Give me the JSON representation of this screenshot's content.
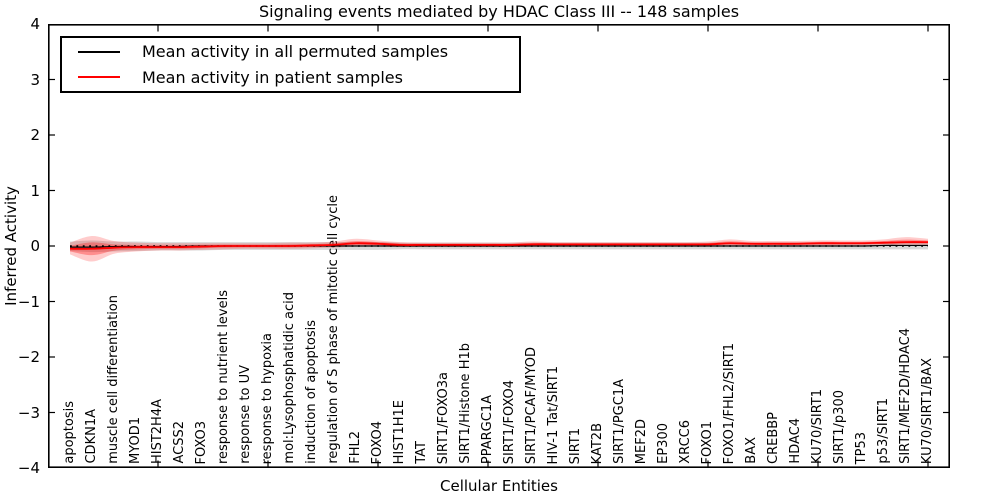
{
  "figure": {
    "title": "Signaling events mediated by HDAC Class III -- 148 samples",
    "xlabel": "Cellular Entities",
    "ylabel": "Inferred Activity"
  },
  "legend": {
    "items": [
      {
        "label": "Mean activity in all permuted samples",
        "color": "#000000"
      },
      {
        "label": "Mean activity in patient samples",
        "color": "#ff0000"
      }
    ]
  },
  "chart_data": {
    "type": "line",
    "title": "Signaling events mediated by HDAC Class III -- 148 samples",
    "xlabel": "Cellular Entities",
    "ylabel": "Inferred Activity",
    "ylim": [
      -4,
      4
    ],
    "yticks": [
      4,
      3,
      2,
      1,
      0,
      -1,
      -2,
      -3,
      -4
    ],
    "xlim_units": [
      0,
      41
    ],
    "x_major_tick_step": 5,
    "grid": false,
    "legend_position": "upper left",
    "zero_line": {
      "y": 0,
      "style": "dotted",
      "color": "#000000"
    },
    "categories": [
      "apoptosis",
      "CDKN1A",
      "muscle cell differentiation",
      "MYOD1",
      "HIST2H4A",
      "ACSS2",
      "FOXO3",
      "response to nutrient levels",
      "response to UV",
      "response to hypoxia",
      "mol:Lysophosphatidic acid",
      "induction of apoptosis",
      "regulation of S phase of mitotic cell cycle",
      "FHL2",
      "FOXO4",
      "HIST1H1E",
      "TAT",
      "SIRT1/FOXO3a",
      "SIRT1/Histone H1b",
      "PPARGC1A",
      "SIRT1/FOXO4",
      "SIRT1/PCAF/MYOD",
      "HIV-1 Tat/SIRT1",
      "SIRT1",
      "KAT2B",
      "SIRT1/PGC1A",
      "MEF2D",
      "EP300",
      "XRCC6",
      "FOXO1",
      "FOXO1/FHL2/SIRT1",
      "BAX",
      "CREBBP",
      "HDAC4",
      "KU70/SIRT1",
      "SIRT1/p300",
      "TP53",
      "p53/SIRT1",
      "SIRT1/MEF2D/HDAC4",
      "KU70/SIRT1/BAX"
    ],
    "series": [
      {
        "name": "Mean activity in all permuted samples",
        "color": "#000000",
        "line_width": 1.2,
        "band_color": "rgba(100,100,100,0.25)",
        "values": [
          -0.02,
          -0.02,
          -0.01,
          -0.01,
          -0.01,
          -0.01,
          0.0,
          0.0,
          0.0,
          0.0,
          0.0,
          0.0,
          0.0,
          0.0,
          0.0,
          0.0,
          0.0,
          0.0,
          0.0,
          0.0,
          0.0,
          0.0,
          0.0,
          0.0,
          0.0,
          0.0,
          0.0,
          0.0,
          0.0,
          0.0,
          0.0,
          0.0,
          0.0,
          0.0,
          0.0,
          0.0,
          0.0,
          0.01,
          0.01,
          0.01
        ],
        "band_lower": [
          -0.09,
          -0.11,
          -0.1,
          -0.09,
          -0.08,
          -0.08,
          -0.08,
          -0.07,
          -0.07,
          -0.07,
          -0.07,
          -0.07,
          -0.07,
          -0.07,
          -0.07,
          -0.06,
          -0.06,
          -0.06,
          -0.06,
          -0.06,
          -0.06,
          -0.06,
          -0.06,
          -0.06,
          -0.06,
          -0.06,
          -0.06,
          -0.06,
          -0.06,
          -0.06,
          -0.06,
          -0.06,
          -0.06,
          -0.06,
          -0.06,
          -0.06,
          -0.06,
          -0.06,
          -0.06,
          -0.06
        ],
        "band_upper": [
          0.08,
          0.1,
          0.08,
          0.08,
          0.07,
          0.07,
          0.07,
          0.07,
          0.07,
          0.07,
          0.07,
          0.07,
          0.07,
          0.07,
          0.07,
          0.06,
          0.06,
          0.06,
          0.06,
          0.06,
          0.06,
          0.06,
          0.06,
          0.06,
          0.06,
          0.06,
          0.06,
          0.06,
          0.06,
          0.06,
          0.06,
          0.06,
          0.06,
          0.06,
          0.06,
          0.06,
          0.06,
          0.06,
          0.06,
          0.06
        ]
      },
      {
        "name": "Mean activity in patient samples",
        "color": "#ff0000",
        "line_width": 1.8,
        "band_color": "rgba(255,0,0,0.20)",
        "inner_band_color": "rgba(255,0,0,0.30)",
        "values": [
          -0.05,
          -0.05,
          -0.03,
          -0.02,
          -0.02,
          -0.02,
          -0.01,
          0.0,
          0.0,
          0.0,
          0.0,
          0.01,
          0.02,
          0.05,
          0.04,
          0.02,
          0.02,
          0.02,
          0.02,
          0.02,
          0.02,
          0.03,
          0.03,
          0.03,
          0.03,
          0.03,
          0.03,
          0.03,
          0.03,
          0.03,
          0.05,
          0.04,
          0.04,
          0.04,
          0.05,
          0.05,
          0.05,
          0.06,
          0.07,
          0.07
        ],
        "band_lower": [
          -0.15,
          -0.28,
          -0.14,
          -0.1,
          -0.08,
          -0.08,
          -0.07,
          -0.06,
          -0.05,
          -0.05,
          -0.05,
          -0.04,
          -0.03,
          -0.01,
          -0.01,
          -0.02,
          -0.02,
          -0.02,
          -0.02,
          -0.02,
          -0.02,
          -0.01,
          -0.01,
          -0.01,
          -0.01,
          -0.01,
          -0.01,
          -0.01,
          -0.01,
          -0.01,
          0.0,
          0.0,
          0.0,
          0.0,
          0.0,
          0.0,
          0.01,
          0.01,
          0.02,
          0.02
        ],
        "band_upper": [
          0.06,
          0.18,
          0.09,
          0.06,
          0.05,
          0.05,
          0.05,
          0.05,
          0.05,
          0.05,
          0.06,
          0.06,
          0.08,
          0.13,
          0.1,
          0.07,
          0.06,
          0.06,
          0.06,
          0.06,
          0.06,
          0.08,
          0.07,
          0.07,
          0.07,
          0.07,
          0.07,
          0.07,
          0.07,
          0.08,
          0.12,
          0.09,
          0.09,
          0.09,
          0.1,
          0.1,
          0.1,
          0.12,
          0.16,
          0.13
        ]
      }
    ]
  }
}
